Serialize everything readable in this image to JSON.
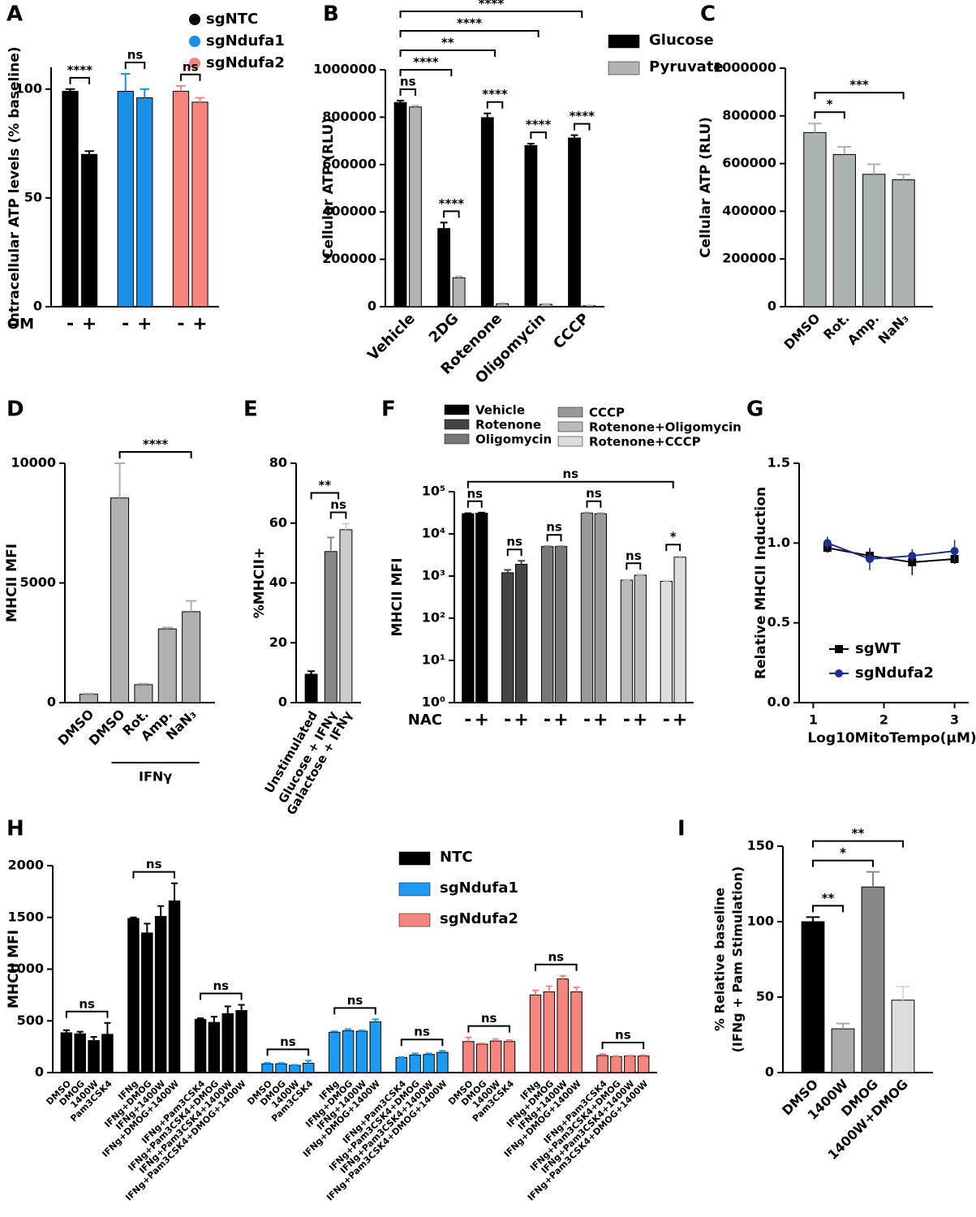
{
  "chart_data": [
    {
      "type": "bar",
      "panel": "A",
      "ylabel": "Intracellular ATP levels (% baseline)",
      "xlabel": "OM",
      "ylim": [
        0,
        110
      ],
      "yticks": [
        0,
        50,
        100
      ],
      "legend": [
        {
          "name": "sgNTC",
          "color": "#000000"
        },
        {
          "name": "sgNdufa1",
          "color": "#1a90e6"
        },
        {
          "name": "sgNdufa2",
          "color": "#f4847c"
        }
      ],
      "groups": [
        {
          "sig": "****",
          "bars": [
            {
              "label": "-",
              "value": 99,
              "error": 1,
              "color": "#000000"
            },
            {
              "label": "+",
              "value": 70,
              "error": 1.5,
              "color": "#000000"
            }
          ]
        },
        {
          "sig": "ns",
          "bars": [
            {
              "label": "-",
              "value": 99,
              "error": 8,
              "color": "#1a90e6"
            },
            {
              "label": "+",
              "value": 96,
              "error": 4,
              "color": "#1a90e6"
            }
          ]
        },
        {
          "sig": "ns",
          "bars": [
            {
              "label": "-",
              "value": 99,
              "error": 2.5,
              "color": "#f4847c"
            },
            {
              "label": "+",
              "value": 94,
              "error": 2,
              "color": "#f4847c"
            }
          ]
        }
      ]
    },
    {
      "type": "bar",
      "panel": "B",
      "ylabel": "Cellular ATP (RLU)",
      "ylim": [
        0,
        1000000
      ],
      "yticks": [
        0,
        200000,
        400000,
        600000,
        800000,
        1000000
      ],
      "legend": [
        {
          "name": "Glucose",
          "color": "#000000"
        },
        {
          "name": "Pyruvate",
          "color": "#b3b3b3"
        }
      ],
      "groups": [
        {
          "label": "Vehicle",
          "sig": "ns",
          "bars": [
            {
              "value": 862000,
              "error": 8000,
              "color": "#000000"
            },
            {
              "value": 843000,
              "error": 5000,
              "color": "#b3b3b3"
            }
          ]
        },
        {
          "label": "2DG",
          "sig": "****",
          "vs": "****",
          "bars": [
            {
              "value": 330000,
              "error": 25000,
              "color": "#000000"
            },
            {
              "value": 122000,
              "error": 6000,
              "color": "#b3b3b3"
            }
          ]
        },
        {
          "label": "Rotenone",
          "sig": "****",
          "vs": "**",
          "bars": [
            {
              "value": 798000,
              "error": 18000,
              "color": "#000000"
            },
            {
              "value": 12000,
              "error": 3000,
              "color": "#b3b3b3"
            }
          ]
        },
        {
          "label": "Oligomycin",
          "sig": "****",
          "vs": "****",
          "bars": [
            {
              "value": 680000,
              "error": 8000,
              "color": "#000000"
            },
            {
              "value": 10000,
              "error": 2000,
              "color": "#b3b3b3"
            }
          ]
        },
        {
          "label": "CCCP",
          "sig": "****",
          "vs": "****",
          "bars": [
            {
              "value": 712000,
              "error": 12000,
              "color": "#000000"
            },
            {
              "value": 4000,
              "error": 1000,
              "color": "#b3b3b3"
            }
          ]
        }
      ]
    },
    {
      "type": "bar",
      "panel": "C",
      "ylabel": "Cellular ATP (RLU)",
      "ylim": [
        0,
        1000000
      ],
      "yticks": [
        0,
        200000,
        400000,
        600000,
        800000,
        1000000
      ],
      "groups": [
        {
          "bars": [
            {
              "label": "DMSO",
              "value": 730000,
              "error": 38000,
              "color": "#aab2b2"
            },
            {
              "label": "Rot.",
              "value": 638000,
              "error": 32000,
              "color": "#aab2b2",
              "vs": "*"
            },
            {
              "label": "Amp.",
              "value": 555000,
              "error": 42000,
              "color": "#aab2b2"
            },
            {
              "label": "NaN₃",
              "value": 532000,
              "error": 22000,
              "color": "#aab2b2",
              "vs": "***"
            }
          ]
        }
      ]
    },
    {
      "type": "bar",
      "panel": "D",
      "ylabel": "MHCII MFI",
      "ylim": [
        0,
        10000
      ],
      "yticks": [
        0,
        5000,
        10000
      ],
      "groups": [
        {
          "bars": [
            {
              "label": "DMSO",
              "value": 350,
              "error": 30,
              "color": "#b0b0b0"
            }
          ]
        },
        {
          "label": "IFNγ",
          "bars": [
            {
              "label": "DMSO",
              "value": 8550,
              "error": 1450,
              "color": "#b0b0b0"
            },
            {
              "label": "Rot.",
              "value": 750,
              "error": 40,
              "color": "#b0b0b0"
            },
            {
              "label": "Amp.",
              "value": 3080,
              "error": 60,
              "color": "#b0b0b0"
            },
            {
              "label": "NaN₃",
              "value": 3800,
              "error": 450,
              "color": "#b0b0b0",
              "vs": "****"
            }
          ]
        }
      ]
    },
    {
      "type": "bar",
      "panel": "E",
      "ylabel": "%MHCII+",
      "ylim": [
        0,
        80
      ],
      "yticks": [
        0,
        20,
        40,
        60,
        80
      ],
      "groups": [
        {
          "bars": [
            {
              "label": "Unstimulated",
              "value": 9.5,
              "error": 1,
              "color": "#000000"
            }
          ]
        },
        {
          "sig": "ns",
          "vs": "**",
          "bars": [
            {
              "label": "Glucose + IFNγ",
              "value": 50.5,
              "error": 4.7,
              "color": "#888888"
            },
            {
              "label": "Galactose + IFNγ",
              "value": 57.8,
              "error": 2,
              "color": "#cccccc"
            }
          ]
        }
      ]
    },
    {
      "type": "bar",
      "panel": "F",
      "ylabel": "MHCII MFI",
      "xlabel": "NAC",
      "log": true,
      "ylim": [
        1,
        100000
      ],
      "yticks": [
        {
          "value": 1,
          "label": "10⁰"
        },
        {
          "value": 10,
          "label": "10¹"
        },
        {
          "value": 100,
          "label": "10²"
        },
        {
          "value": 1000,
          "label": "10³"
        },
        {
          "value": 10000,
          "label": "10⁴"
        },
        {
          "value": 100000,
          "label": "10⁵"
        }
      ],
      "legend": [
        {
          "name": "Vehicle",
          "color": "#000000"
        },
        {
          "name": "Rotenone",
          "color": "#444444"
        },
        {
          "name": "Oligomycin",
          "color": "#777777"
        },
        {
          "name": "CCCP",
          "color": "#999999"
        },
        {
          "name": "Rotenone+Oligomycin",
          "color": "#bbbbbb"
        },
        {
          "name": "Rotenone+CCCP",
          "color": "#dddddd"
        }
      ],
      "groups": [
        {
          "sig": "ns",
          "bars": [
            {
              "label": "-",
              "value": 30000,
              "error": 800,
              "color": "#000000"
            },
            {
              "label": "+",
              "value": 31000,
              "error": 900,
              "color": "#000000"
            }
          ]
        },
        {
          "sig": "ns",
          "bars": [
            {
              "label": "-",
              "value": 1200,
              "error": 200,
              "color": "#444444"
            },
            {
              "label": "+",
              "value": 1900,
              "error": 400,
              "color": "#444444"
            }
          ]
        },
        {
          "sig": "ns",
          "bars": [
            {
              "label": "-",
              "value": 5000,
              "error": 100,
              "color": "#777777"
            },
            {
              "label": "+",
              "value": 5000,
              "error": 100,
              "color": "#777777"
            }
          ]
        },
        {
          "sig": "ns",
          "bars": [
            {
              "label": "-",
              "value": 31000,
              "error": 1000,
              "color": "#999999"
            },
            {
              "label": "+",
              "value": 30000,
              "error": 1000,
              "color": "#999999"
            }
          ]
        },
        {
          "sig": "ns",
          "bars": [
            {
              "label": "-",
              "value": 800,
              "error": 20,
              "color": "#bbbbbb"
            },
            {
              "label": "+",
              "value": 1050,
              "error": 30,
              "color": "#bbbbbb"
            }
          ]
        },
        {
          "sig": "*",
          "vs": "ns",
          "bars": [
            {
              "label": "-",
              "value": 750,
              "error": 30,
              "color": "#dddddd"
            },
            {
              "label": "+",
              "value": 2800,
              "error": 200,
              "color": "#dddddd"
            }
          ]
        }
      ]
    },
    {
      "type": "line",
      "panel": "G",
      "ylabel": "Relative MHCII Induction",
      "xlabel": "Log10MitoTempo(μM)",
      "xlim": [
        0.8,
        3.2
      ],
      "xticks": [
        1,
        2,
        3
      ],
      "ylim": [
        0,
        1.5
      ],
      "yticks": [
        {
          "value": 0,
          "label": "0.0"
        },
        0.5,
        {
          "value": 1,
          "label": "1.0"
        },
        1.5
      ],
      "x": [
        1.2,
        1.8,
        2.4,
        3.0
      ],
      "series": [
        {
          "name": "sgWT",
          "color": "#000000",
          "marker": "square",
          "values": [
            0.97,
            0.92,
            0.88,
            0.9
          ],
          "errors": [
            0.03,
            0.04,
            0.08,
            0.03
          ]
        },
        {
          "name": "sgNdufa2",
          "color": "#1f2f8f",
          "marker": "circle",
          "values": [
            1.0,
            0.9,
            0.92,
            0.95
          ],
          "errors": [
            0.04,
            0.07,
            0.04,
            0.07
          ]
        }
      ]
    },
    {
      "type": "bar",
      "panel": "H",
      "ylabel": "MHCII MFI",
      "ylim": [
        0,
        2000
      ],
      "yticks": [
        0,
        500,
        1000,
        1500,
        2000
      ],
      "legend": [
        {
          "name": "NTC",
          "color": "#000000"
        },
        {
          "name": "sgNdufa1",
          "color": "#1d9bf0"
        },
        {
          "name": "sgNdufa2",
          "color": "#f4857d"
        }
      ],
      "groups": [
        {
          "sig": "ns",
          "bars": [
            {
              "label": "DMSO",
              "value": 385,
              "error": 25,
              "color": "#000000"
            },
            {
              "label": "DMOG",
              "value": 375,
              "error": 20,
              "color": "#000000"
            },
            {
              "label": "1400W",
              "value": 310,
              "error": 35,
              "color": "#000000"
            },
            {
              "label": "Pam3CSK4",
              "value": 370,
              "error": 110,
              "color": "#000000"
            }
          ]
        },
        {
          "sig": "ns",
          "bars": [
            {
              "label": "IFNg",
              "value": 1490,
              "error": 10,
              "color": "#000000"
            },
            {
              "label": "IFNg+DMOG",
              "value": 1350,
              "error": 90,
              "color": "#000000"
            },
            {
              "label": "IFNg+1400W",
              "value": 1510,
              "error": 100,
              "color": "#000000"
            },
            {
              "label": "IFNg+DMOG+1400W",
              "value": 1660,
              "error": 170,
              "color": "#000000"
            }
          ]
        },
        {
          "sig": "ns",
          "bars": [
            {
              "label": "IFNg+Pam3CSK4",
              "value": 515,
              "error": 10,
              "color": "#000000"
            },
            {
              "label": "IFNg+Pam3CSK4+DMOG",
              "value": 485,
              "error": 55,
              "color": "#000000"
            },
            {
              "label": "IFNg+Pam3CSK4+1400W",
              "value": 570,
              "error": 70,
              "color": "#000000"
            },
            {
              "label": "IFNg+Pam3CSK4+DMOG+1400W",
              "value": 600,
              "error": 55,
              "color": "#000000"
            }
          ]
        },
        {
          "sig": "ns",
          "bars": [
            {
              "label": "DMSO",
              "value": 85,
              "error": 10,
              "color": "#1d9bf0"
            },
            {
              "label": "DMOG",
              "value": 85,
              "error": 8,
              "color": "#1d9bf0"
            },
            {
              "label": "1400W",
              "value": 70,
              "error": 5,
              "color": "#1d9bf0"
            },
            {
              "label": "Pam3CSK4",
              "value": 90,
              "error": 25,
              "color": "#1d9bf0"
            }
          ]
        },
        {
          "sig": "ns",
          "bars": [
            {
              "label": "IFNg",
              "value": 390,
              "error": 10,
              "color": "#1d9bf0"
            },
            {
              "label": "IFNg+DMOG",
              "value": 405,
              "error": 15,
              "color": "#1d9bf0"
            },
            {
              "label": "IFNg+1400W",
              "value": 400,
              "error": 8,
              "color": "#1d9bf0"
            },
            {
              "label": "IFNg+DMOG+1400W",
              "value": 490,
              "error": 25,
              "color": "#1d9bf0"
            }
          ]
        },
        {
          "sig": "ns",
          "bars": [
            {
              "label": "IFNg+Pam3CSK4",
              "value": 145,
              "error": 5,
              "color": "#1d9bf0"
            },
            {
              "label": "IFNg+Pam3CSK4+DMOG",
              "value": 170,
              "error": 15,
              "color": "#1d9bf0"
            },
            {
              "label": "IFNg+Pam3CSK4+1400W",
              "value": 175,
              "error": 10,
              "color": "#1d9bf0"
            },
            {
              "label": "IFNg+Pam3CSK4+DMOG+1400W",
              "value": 195,
              "error": 15,
              "color": "#1d9bf0"
            }
          ]
        },
        {
          "sig": "ns",
          "bars": [
            {
              "label": "DMSO",
              "value": 300,
              "error": 40,
              "color": "#f4857d"
            },
            {
              "label": "DMOG",
              "value": 275,
              "error": 8,
              "color": "#f4857d"
            },
            {
              "label": "1400W",
              "value": 305,
              "error": 20,
              "color": "#f4857d"
            },
            {
              "label": "Pam3CSK4",
              "value": 300,
              "error": 15,
              "color": "#f4857d"
            }
          ]
        },
        {
          "sig": "ns",
          "bars": [
            {
              "label": "IFNg",
              "value": 750,
              "error": 45,
              "color": "#f4857d"
            },
            {
              "label": "IFNg+DMOG",
              "value": 780,
              "error": 55,
              "color": "#f4857d"
            },
            {
              "label": "IFNg+1400W",
              "value": 905,
              "error": 30,
              "color": "#f4857d"
            },
            {
              "label": "IFNg+DMOG+1400W",
              "value": 780,
              "error": 45,
              "color": "#f4857d"
            }
          ]
        },
        {
          "sig": "ns",
          "bars": [
            {
              "label": "IFNg+Pam3CSK4",
              "value": 165,
              "error": 15,
              "color": "#f4857d"
            },
            {
              "label": "IFNg+Pam3CSK4+DMOG",
              "value": 155,
              "error": 5,
              "color": "#f4857d"
            },
            {
              "label": "IFNg+Pam3CSK4+1400W",
              "value": 160,
              "error": 5,
              "color": "#f4857d"
            },
            {
              "label": "IFNg+Pam3CSK4+DMOG+1400W",
              "value": 160,
              "error": 8,
              "color": "#f4857d"
            }
          ]
        }
      ]
    },
    {
      "type": "bar",
      "panel": "I",
      "ylabel": [
        "% Relative baseline",
        "(IFNg + Pam Stimulation)"
      ],
      "ylim": [
        0,
        150
      ],
      "yticks": [
        0,
        50,
        100,
        150
      ],
      "groups": [
        {
          "bars": [
            {
              "label": "DMSO",
              "value": 100,
              "error": 3,
              "color": "#000000"
            },
            {
              "label": "1400W",
              "value": 29,
              "error": 3.5,
              "color": "#aaaaaa",
              "vs": "**"
            },
            {
              "label": "DMOG",
              "value": 123,
              "error": 10,
              "color": "#888888",
              "vs": "*"
            },
            {
              "label": "1400W+DMOG",
              "value": 48,
              "error": 9,
              "color": "#dddddd",
              "vs": "**"
            }
          ]
        }
      ]
    }
  ]
}
